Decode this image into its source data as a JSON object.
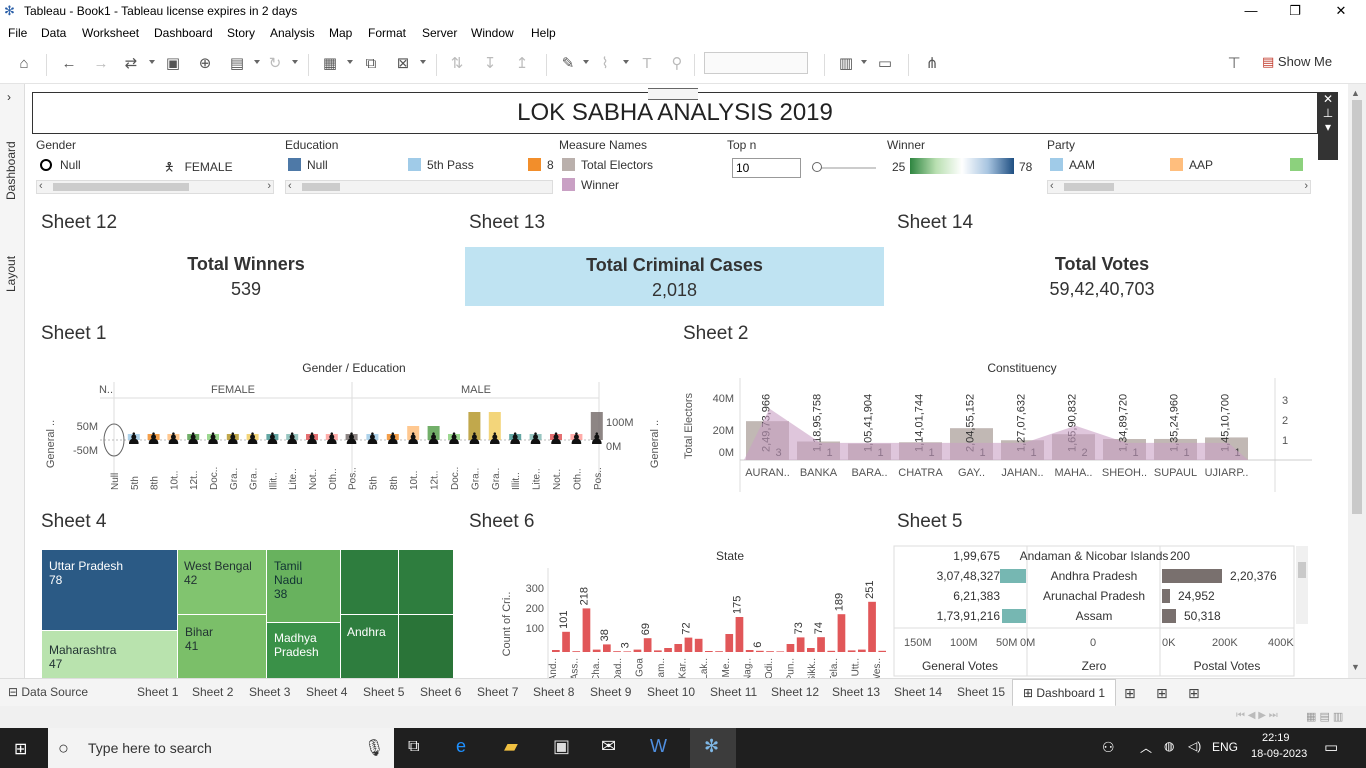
{
  "window": {
    "title": "Tableau - Book1 - Tableau license expires in 2 days"
  },
  "menu": [
    "File",
    "Data",
    "Worksheet",
    "Dashboard",
    "Story",
    "Analysis",
    "Map",
    "Format",
    "Server",
    "Window",
    "Help"
  ],
  "toolbar": {
    "show_me": "Show Me"
  },
  "left_tabs": {
    "dashboard": "Dashboard",
    "layout": "Layout"
  },
  "dashboard": {
    "title": "LOK SABHA ANALYSIS 2019"
  },
  "filters": {
    "gender": {
      "title": "Gender",
      "items": [
        "Null",
        "FEMALE"
      ]
    },
    "education": {
      "title": "Education",
      "items": [
        "Null",
        "5th Pass",
        "8"
      ],
      "colors": [
        "#4e79a7",
        "#a0cbe8",
        "#f28e2b"
      ]
    },
    "measure_names": {
      "title": "Measure Names",
      "items": [
        "Total Electors",
        "Winner"
      ],
      "colors": [
        "#bab0ac",
        "#c9a0c4"
      ]
    },
    "top_n": {
      "title": "Top n",
      "value": "10"
    },
    "winner": {
      "title": "Winner",
      "min": "25",
      "max": "78"
    },
    "party": {
      "title": "Party",
      "items": [
        "AAM",
        "AAP"
      ],
      "colors": [
        "#a0cbe8",
        "#ffbe7d",
        "#8cd17d"
      ]
    }
  },
  "kpis": {
    "sheet12": {
      "sheet": "Sheet 12",
      "label": "Total Winners",
      "value": "539"
    },
    "sheet13": {
      "sheet": "Sheet 13",
      "label": "Total Criminal Cases",
      "value": "2,018"
    },
    "sheet14": {
      "sheet": "Sheet 14",
      "label": "Total Votes",
      "value": "59,42,40,703"
    }
  },
  "sheet1": {
    "sheet": "Sheet 1",
    "header": "Gender / Education",
    "groups": [
      "N..",
      "FEMALE",
      "MALE"
    ],
    "left_axis": [
      "50M",
      "-50M"
    ],
    "right_axis": [
      "100M",
      "0M"
    ],
    "left_label": "General ..",
    "right_label": "General ..",
    "x_labels": [
      "Null",
      "5th",
      "8th",
      "10t..",
      "12t..",
      "Doc..",
      "Gra..",
      "Gra..",
      "Illit..",
      "Lite..",
      "Not..",
      "Oth..",
      "Pos..",
      "5th",
      "8th",
      "10t..",
      "12t..",
      "Doc..",
      "Gra..",
      "Gra..",
      "Illit..",
      "Lite..",
      "Not..",
      "Oth..",
      "Pos.."
    ]
  },
  "sheet2": {
    "sheet": "Sheet 2",
    "header": "Constituency",
    "ylabel": "Total Electors",
    "y2label": "Winner",
    "y_ticks": [
      "40M",
      "20M",
      "0M"
    ],
    "y2_ticks": [
      "3",
      "2",
      "1"
    ],
    "constituencies": [
      "AURAN..",
      "BANKA",
      "BARA..",
      "CHATRA",
      "GAY..",
      "JAHAN..",
      "MAHA..",
      "SHEOH..",
      "SUPAUL",
      "UJIARP.."
    ],
    "electors_labels": [
      "2,49,73,966",
      "1,18,95,758",
      "1,05,41,904",
      "1,14,01,744",
      "2,04,55,152",
      "1,27,07,632",
      "1,65,90,832",
      "1,34,89,720",
      "1,35,24,960",
      "1,45,10,700"
    ],
    "winner_labels": [
      "3",
      "1",
      "1",
      "1",
      "1",
      "1",
      "2",
      "1",
      "1",
      "1"
    ]
  },
  "sheet4": {
    "sheet": "Sheet 4",
    "cells": [
      {
        "name": "Uttar Pradesh",
        "value": "78"
      },
      {
        "name": "West Bengal",
        "value": "42"
      },
      {
        "name": "Tamil Nadu",
        "value": "38"
      },
      {
        "name": "Maharashtra",
        "value": "47"
      },
      {
        "name": "Bihar",
        "value": "41"
      },
      {
        "name": "Madhya Pradesh",
        "value": ""
      },
      {
        "name": "Andhra",
        "value": ""
      }
    ]
  },
  "sheet6": {
    "sheet": "Sheet 6",
    "header": "State",
    "ylabel": "Count of Cri..",
    "y_ticks": [
      "300",
      "200",
      "100"
    ],
    "states": [
      "And..",
      "Ass..",
      "Cha..",
      "Dad..",
      "Goa",
      "Ham..",
      "Kar..",
      "Lak..",
      "Me..",
      "Nag..",
      "Odi..",
      "Pun..",
      "Sikk..",
      "Tela..",
      "Utt..",
      "Wes.."
    ],
    "labels": [
      "101",
      "218",
      "38",
      "3",
      "69",
      "72",
      "175",
      "6",
      "73",
      "74",
      "189",
      "251"
    ]
  },
  "sheet5": {
    "sheet": "Sheet 5",
    "rows": [
      {
        "state": "Andaman & Nicobar Islands",
        "general": "1,99,675",
        "postal": "200"
      },
      {
        "state": "Andhra Pradesh",
        "general": "3,07,48,327",
        "postal": "2,20,376"
      },
      {
        "state": "Arunachal Pradesh",
        "general": "6,21,383",
        "postal": "24,952"
      },
      {
        "state": "Assam",
        "general": "1,73,91,216",
        "postal": "50,318"
      }
    ],
    "general_axis": [
      "150M",
      "100M",
      "50M",
      "0M"
    ],
    "zero_axis": [
      "0"
    ],
    "postal_axis": [
      "0K",
      "200K",
      "400K"
    ],
    "headers": [
      "General Votes",
      "Zero",
      "Postal Votes"
    ]
  },
  "sheet_tabs": [
    "Data Source",
    "Sheet 1",
    "Sheet 2",
    "Sheet 3",
    "Sheet 4",
    "Sheet 5",
    "Sheet 6",
    "Sheet 7",
    "Sheet 8",
    "Sheet 9",
    "Sheet 10",
    "Sheet 11",
    "Sheet 12",
    "Sheet 13",
    "Sheet 14",
    "Sheet 15",
    "Dashboard 1"
  ],
  "taskbar": {
    "search_placeholder": "Type here to search",
    "lang": "ENG",
    "time": "22:19",
    "date": "18-09-2023"
  }
}
